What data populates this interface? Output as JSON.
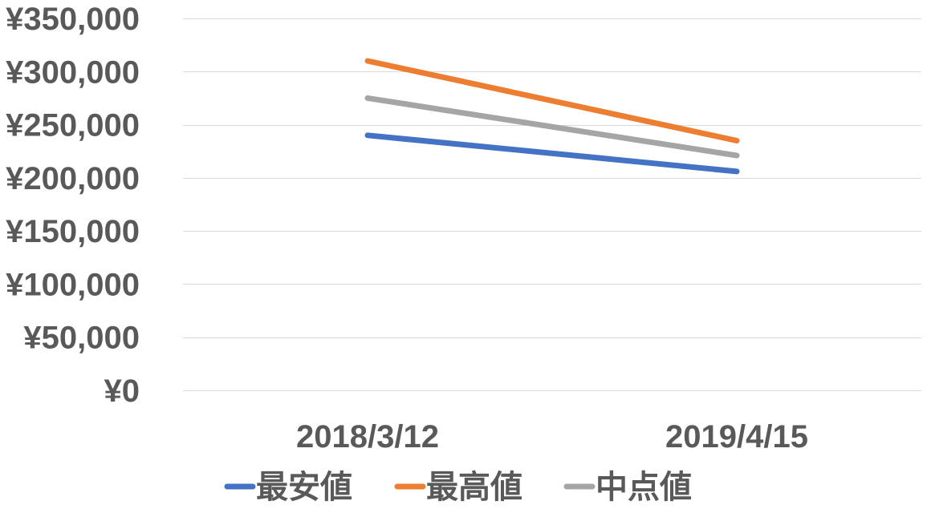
{
  "chart_data": {
    "type": "line",
    "categories": [
      "2018/3/12",
      "2019/4/15"
    ],
    "series": [
      {
        "name": "最安値",
        "values": [
          240000,
          206000
        ],
        "color": "#4472C4"
      },
      {
        "name": "最高値",
        "values": [
          310000,
          235000
        ],
        "color": "#ED7D31"
      },
      {
        "name": "中点値",
        "values": [
          275000,
          221000
        ],
        "color": "#A5A5A5"
      }
    ],
    "ylim": [
      0,
      350000
    ],
    "y_ticks": [
      0,
      50000,
      100000,
      150000,
      200000,
      250000,
      300000,
      350000
    ],
    "y_tick_labels": [
      "¥0",
      "¥50,000",
      "¥100,000",
      "¥150,000",
      "¥200,000",
      "¥250,000",
      "¥300,000",
      "¥350,000"
    ],
    "grid": true,
    "legend_position": "bottom",
    "gridline_color": "#D9D9D9",
    "label_color": "#595959"
  }
}
